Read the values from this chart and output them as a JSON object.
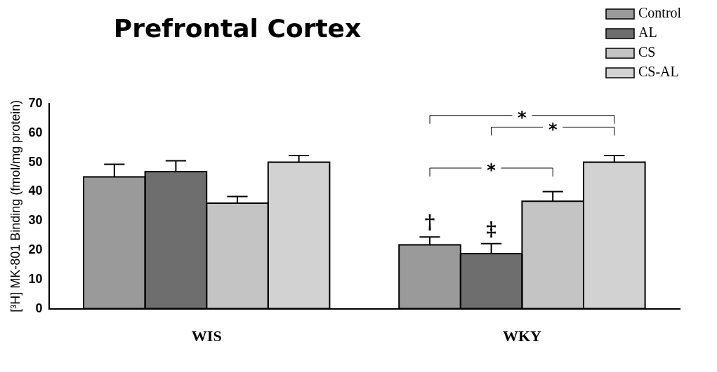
{
  "chart_data": {
    "type": "bar",
    "title": "Prefrontal Cortex",
    "ylabel": "[³H] MK-801 Binding (fmol/mg protein)",
    "categories": [
      "WIS",
      "WKY"
    ],
    "series": [
      {
        "name": "Control",
        "color": "#9a9a9a",
        "values": [
          45,
          21.8
        ],
        "errors": [
          [
            45,
            49.3
          ],
          [
            21.8,
            24.5
          ]
        ]
      },
      {
        "name": "AL",
        "color": "#6e6e6e",
        "values": [
          46.8,
          18.8
        ],
        "errors": [
          [
            46.8,
            50.5
          ],
          [
            18.8,
            22.2
          ]
        ]
      },
      {
        "name": "CS",
        "color": "#c4c4c4",
        "values": [
          36,
          36.7
        ],
        "errors": [
          [
            36,
            38.3
          ],
          [
            36.7,
            40
          ]
        ]
      },
      {
        "name": "CS-AL",
        "color": "#d2d2d2",
        "values": [
          50,
          50
        ],
        "errors": [
          [
            50,
            52.3
          ],
          [
            50,
            52.3
          ]
        ]
      }
    ],
    "ylim": [
      0,
      70
    ],
    "yticks": [
      0,
      10,
      20,
      30,
      40,
      50,
      60,
      70
    ],
    "grid": false,
    "legend": "top right",
    "annotations": [
      "*",
      "*",
      "*",
      "†",
      "‡"
    ]
  }
}
